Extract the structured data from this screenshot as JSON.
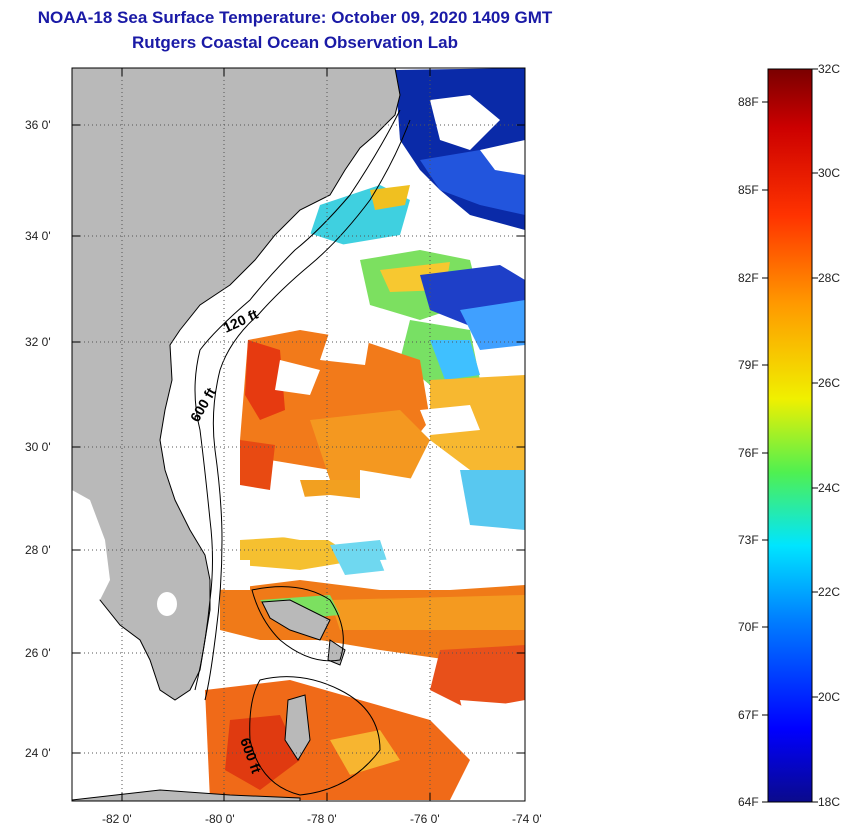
{
  "header": {
    "title_line1": "NOAA-18 Sea Surface Temperature:  October 09, 2020 1409 GMT",
    "title_line2": "Rutgers Coastal Ocean Observation Lab"
  },
  "map": {
    "lat_labels": [
      "36 0'",
      "34 0'",
      "32 0'",
      "30 0'",
      "28 0'",
      "26 0'",
      "24 0'"
    ],
    "lon_labels": [
      "-82 0'",
      "-80 0'",
      "-78 0'",
      "-76 0'",
      "-74 0'"
    ],
    "contour_labels": {
      "shallow": "120 ft",
      "deep": "600 ft",
      "deep_south": "600 ft"
    },
    "colors": {
      "land": "#b9b9b9",
      "cloud": "#ffffff",
      "grid": "#555555"
    }
  },
  "colorbar": {
    "celsius": [
      "32C",
      "30C",
      "28C",
      "26C",
      "24C",
      "22C",
      "20C",
      "18C"
    ],
    "fahrenheit": [
      "88F",
      "85F",
      "82F",
      "79F",
      "76F",
      "73F",
      "70F",
      "67F",
      "64F"
    ],
    "range_c": [
      18,
      32
    ],
    "colors_low_to_high": [
      "#0a0a8c",
      "#0000ff",
      "#0080ff",
      "#00e5ff",
      "#50f050",
      "#f0f000",
      "#ff9900",
      "#ff3300",
      "#cc0000",
      "#7a0000"
    ]
  }
}
